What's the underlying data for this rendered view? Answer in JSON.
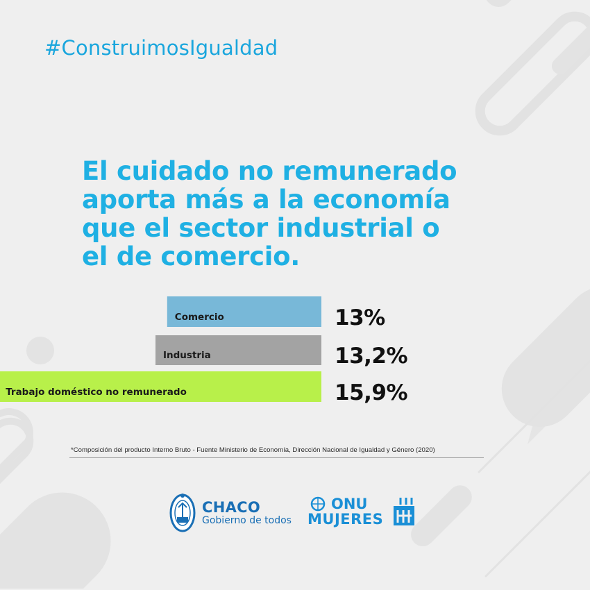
{
  "hashtag": "#ConstruimosIgualdad",
  "headline": {
    "line1": "El cuidado no remunerado",
    "line2": "aporta más a la economía",
    "line3": "que el sector industrial o",
    "line4": "el de comercio."
  },
  "chart_data": {
    "type": "bar",
    "orientation": "horizontal",
    "categories": [
      "Comercio",
      "Industria",
      "Trabajo doméstico no remunerado"
    ],
    "values": [
      13,
      13.2,
      15.9
    ],
    "value_labels": [
      "13%",
      "13,2%",
      "15,9%"
    ],
    "unit": "%",
    "colors": [
      "#78b8d8",
      "#a3a3a3",
      "#b8f04a"
    ],
    "title": "",
    "xlabel": "",
    "ylabel": "",
    "grid": false,
    "legend": "none"
  },
  "footnote": "*Composición del producto Interno Bruto - Fuente Ministerio de Economía, Dirección Nacional de Igualdad y Género (2020)",
  "logos": {
    "chaco_name": "CHACO",
    "chaco_sub": "Gobierno de todos",
    "onu_top": "ONU",
    "onu_bottom": "MUJERES"
  },
  "colors": {
    "background": "#efefef",
    "accent": "#1fb0e3",
    "decor": "#e3e3e3"
  }
}
